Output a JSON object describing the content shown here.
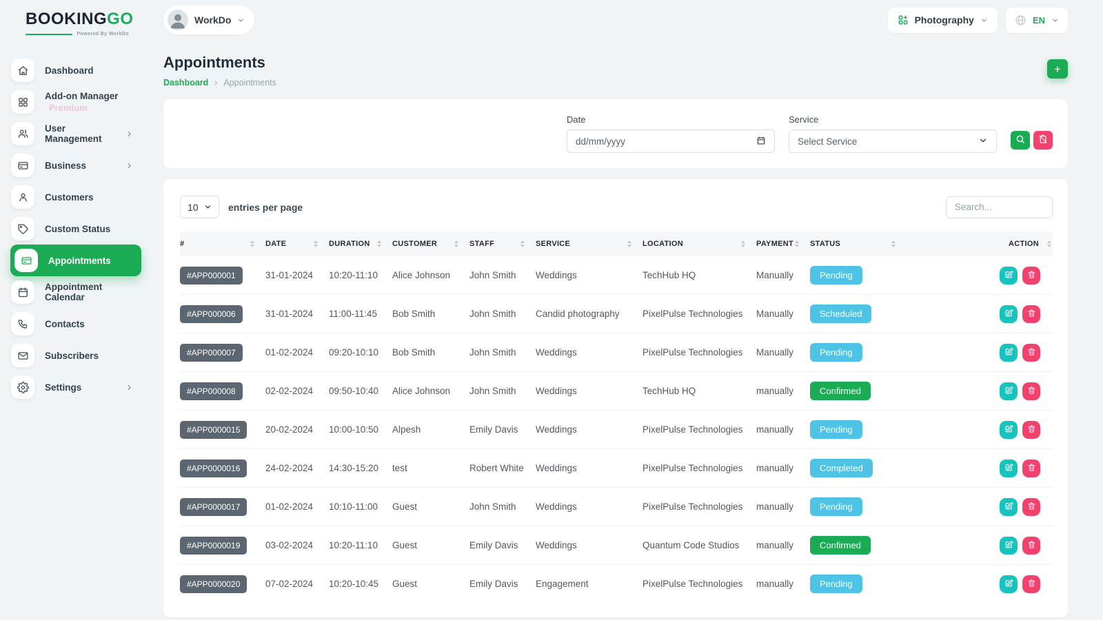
{
  "brand": {
    "name_primary": "BOOKING",
    "name_secondary": "GO",
    "powered_by": "Powered By WorkDo"
  },
  "topbar": {
    "workspace_label": "WorkDo",
    "module_label": "Photography",
    "language_label": "EN"
  },
  "sidebar": {
    "items": [
      {
        "label": "Dashboard",
        "icon": "home-icon"
      },
      {
        "label": "Add-on Manager",
        "sublabel": "Premium",
        "icon": "grid-icon"
      },
      {
        "label": "User Management",
        "icon": "users-icon",
        "chevron": true
      },
      {
        "label": "Business",
        "icon": "credit-card-icon",
        "chevron": true
      },
      {
        "label": "Customers",
        "icon": "user-icon"
      },
      {
        "label": "Custom Status",
        "icon": "tag-icon"
      },
      {
        "label": "Appointments",
        "icon": "appointment-card-icon",
        "active": true
      },
      {
        "label": "Appointment Calendar",
        "icon": "calendar-icon"
      },
      {
        "label": "Contacts",
        "icon": "phone-icon"
      },
      {
        "label": "Subscribers",
        "icon": "mail-icon"
      },
      {
        "label": "Settings",
        "icon": "gear-icon",
        "chevron": true
      }
    ]
  },
  "page": {
    "title": "Appointments",
    "breadcrumb_home": "Dashboard",
    "breadcrumb_separator": "›",
    "breadcrumb_current": "Appointments"
  },
  "filters": {
    "date_label": "Date",
    "date_placeholder": "dd/mm/yyyy",
    "service_label": "Service",
    "service_value": "Select Service"
  },
  "table_controls": {
    "entries_value": "10",
    "entries_label": "entries per page",
    "search_placeholder": "Search..."
  },
  "table": {
    "columns": [
      "#",
      "DATE",
      "DURATION",
      "CUSTOMER",
      "STAFF",
      "SERVICE",
      "LOCATION",
      "PAYMENT",
      "STATUS",
      "ACTION"
    ],
    "rows": [
      {
        "id": "#APP000001",
        "date": "31-01-2024",
        "duration": "10:20-11:10",
        "customer": "Alice Johnson",
        "staff": "John Smith",
        "service": "Weddings",
        "location": "TechHub HQ",
        "payment": "Manually",
        "status": "Pending",
        "status_color": "blue"
      },
      {
        "id": "#APP000006",
        "date": "31-01-2024",
        "duration": "11:00-11:45",
        "customer": "Bob Smith",
        "staff": "John Smith",
        "service": "Candid photography",
        "location": "PixelPulse Technologies",
        "payment": "Manually",
        "status": "Scheduled",
        "status_color": "blue"
      },
      {
        "id": "#APP000007",
        "date": "01-02-2024",
        "duration": "09:20-10:10",
        "customer": "Bob Smith",
        "staff": "John Smith",
        "service": "Weddings",
        "location": "PixelPulse Technologies",
        "payment": "Manually",
        "status": "Pending",
        "status_color": "blue"
      },
      {
        "id": "#APP000008",
        "date": "02-02-2024",
        "duration": "09:50-10:40",
        "customer": "Alice Johnson",
        "staff": "John Smith",
        "service": "Weddings",
        "location": "TechHub HQ",
        "payment": "manually",
        "status": "Confirmed",
        "status_color": "green"
      },
      {
        "id": "#APP0000015",
        "date": "20-02-2024",
        "duration": "10:00-10:50",
        "customer": "Alpesh",
        "staff": "Emily Davis",
        "service": "Weddings",
        "location": "PixelPulse Technologies",
        "payment": "manually",
        "status": "Pending",
        "status_color": "blue"
      },
      {
        "id": "#APP0000016",
        "date": "24-02-2024",
        "duration": "14:30-15:20",
        "customer": "test",
        "staff": "Robert White",
        "service": "Weddings",
        "location": "PixelPulse Technologies",
        "payment": "manually",
        "status": "Completed",
        "status_color": "blue"
      },
      {
        "id": "#APP0000017",
        "date": "01-02-2024",
        "duration": "10:10-11:00",
        "customer": "Guest",
        "staff": "John Smith",
        "service": "Weddings",
        "location": "PixelPulse Technologies",
        "payment": "manually",
        "status": "Pending",
        "status_color": "blue"
      },
      {
        "id": "#APP0000019",
        "date": "03-02-2024",
        "duration": "10:20-11:10",
        "customer": "Guest",
        "staff": "Emily Davis",
        "service": "Weddings",
        "location": "Quantum Code Studios",
        "payment": "manually",
        "status": "Confirmed",
        "status_color": "green"
      },
      {
        "id": "#APP0000020",
        "date": "07-02-2024",
        "duration": "10:20-10:45",
        "customer": "Guest",
        "staff": "Emily Davis",
        "service": "Engagement",
        "location": "PixelPulse Technologies",
        "payment": "manually",
        "status": "Pending",
        "status_color": "blue"
      }
    ]
  },
  "colors": {
    "brand_green": "#1aab54",
    "badge_blue": "#4fc3e6",
    "badge_green": "#1aab54",
    "id_badge_bg": "#5b6670",
    "edit_button": "#17c3bd",
    "delete_button": "#f1426d"
  }
}
